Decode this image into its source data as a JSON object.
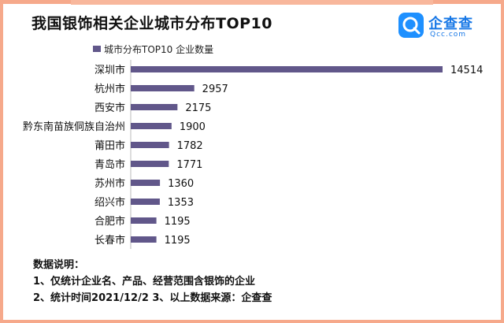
{
  "header": {
    "title": "我国银饰相关企业城市分布TOP10",
    "logo_main": "企查查",
    "logo_sub": "Qcc.com",
    "logo_icon": "qcc-magnifier-icon"
  },
  "chart_data": {
    "type": "bar",
    "orientation": "horizontal",
    "title": "我国银饰相关企业城市分布TOP10",
    "categories": [
      "深圳市",
      "杭州市",
      "西安市",
      "黔东南苗族侗族自治州",
      "莆田市",
      "青岛市",
      "苏州市",
      "绍兴市",
      "合肥市",
      "长春市"
    ],
    "series": [
      {
        "name": "城市分布TOP10 企业数量",
        "values": [
          14514,
          2957,
          2175,
          1900,
          1782,
          1771,
          1360,
          1353,
          1195,
          1195
        ],
        "color": "#61578a"
      }
    ],
    "xlim": [
      0,
      14514
    ],
    "grid": false,
    "legend": "top-left"
  },
  "notes": {
    "heading": "数据说明：",
    "line1": "1、仅统计企业名、产品、经营范围含银饰的企业",
    "line2": "2、统计时间2021/12/2   3、以上数据来源：企查查"
  },
  "colors": {
    "border": "#f6a98b",
    "bar": "#61578a",
    "brand": "#1677e6"
  }
}
